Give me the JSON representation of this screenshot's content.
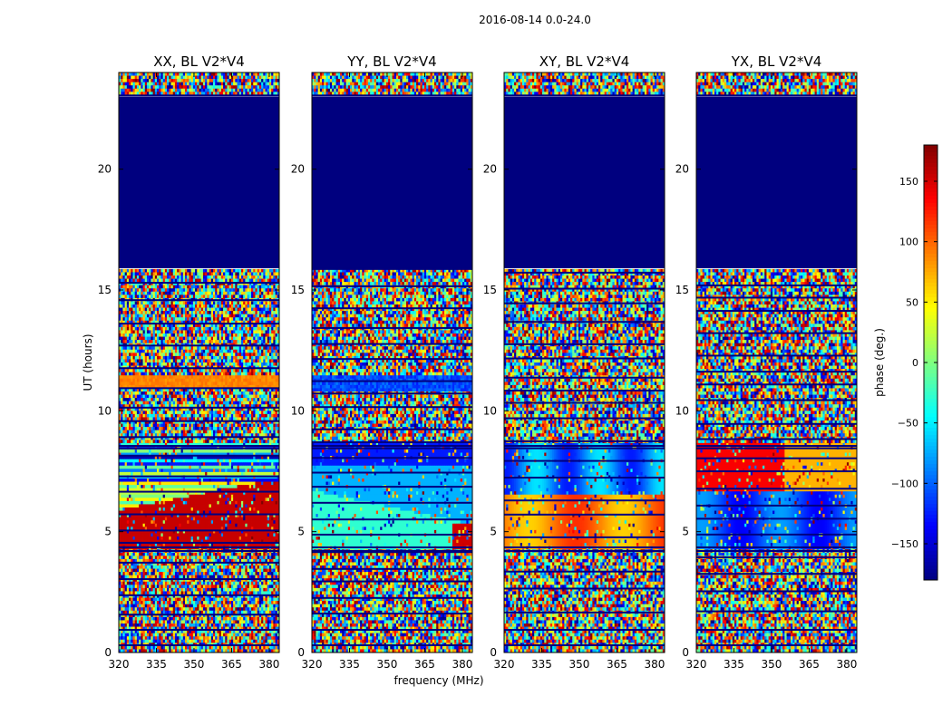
{
  "figure_title": "2016-08-14 0.0-24.0",
  "chart_data": {
    "type": "heatmap",
    "xlabel": "frequency (MHz)",
    "ylabel": "UT (hours)",
    "xlim": [
      320,
      384
    ],
    "ylim": [
      0,
      24
    ],
    "xticks": [
      320,
      335,
      350,
      365,
      380
    ],
    "yticks": [
      0,
      5,
      10,
      15,
      20
    ],
    "colormap": "jet",
    "colorbar": {
      "label": "phase (deg.)",
      "range": [
        -180,
        180
      ],
      "ticks": [
        150,
        100,
        50,
        0,
        -50,
        -100,
        -150
      ],
      "tick_labels": [
        "150",
        "100",
        "50",
        "0",
        "−50",
        "−100",
        "−150"
      ]
    },
    "panels": [
      {
        "title": "XX, BL V2*V4",
        "correlation": "XX",
        "baseline": "V2*V4"
      },
      {
        "title": "YY, BL V2*V4",
        "correlation": "YY",
        "baseline": "V2*V4"
      },
      {
        "title": "XY, BL V2*V4",
        "correlation": "XY",
        "baseline": "V2*V4"
      },
      {
        "title": "YX, BL V2*V4",
        "correlation": "YX",
        "baseline": "V2*V4"
      }
    ],
    "flagged_uniform_range_hours": [
      15.9,
      23.0
    ],
    "flagged_value_deg": -180,
    "noise_ranges_hours": [
      [
        0.0,
        4.3
      ],
      [
        8.6,
        15.9
      ],
      [
        23.0,
        24.0
      ]
    ],
    "coherent_signal_range_hours": [
      4.3,
      8.6
    ]
  },
  "colors": {
    "flagged": "#00007f",
    "axis": "#000000",
    "background": "#ffffff"
  }
}
